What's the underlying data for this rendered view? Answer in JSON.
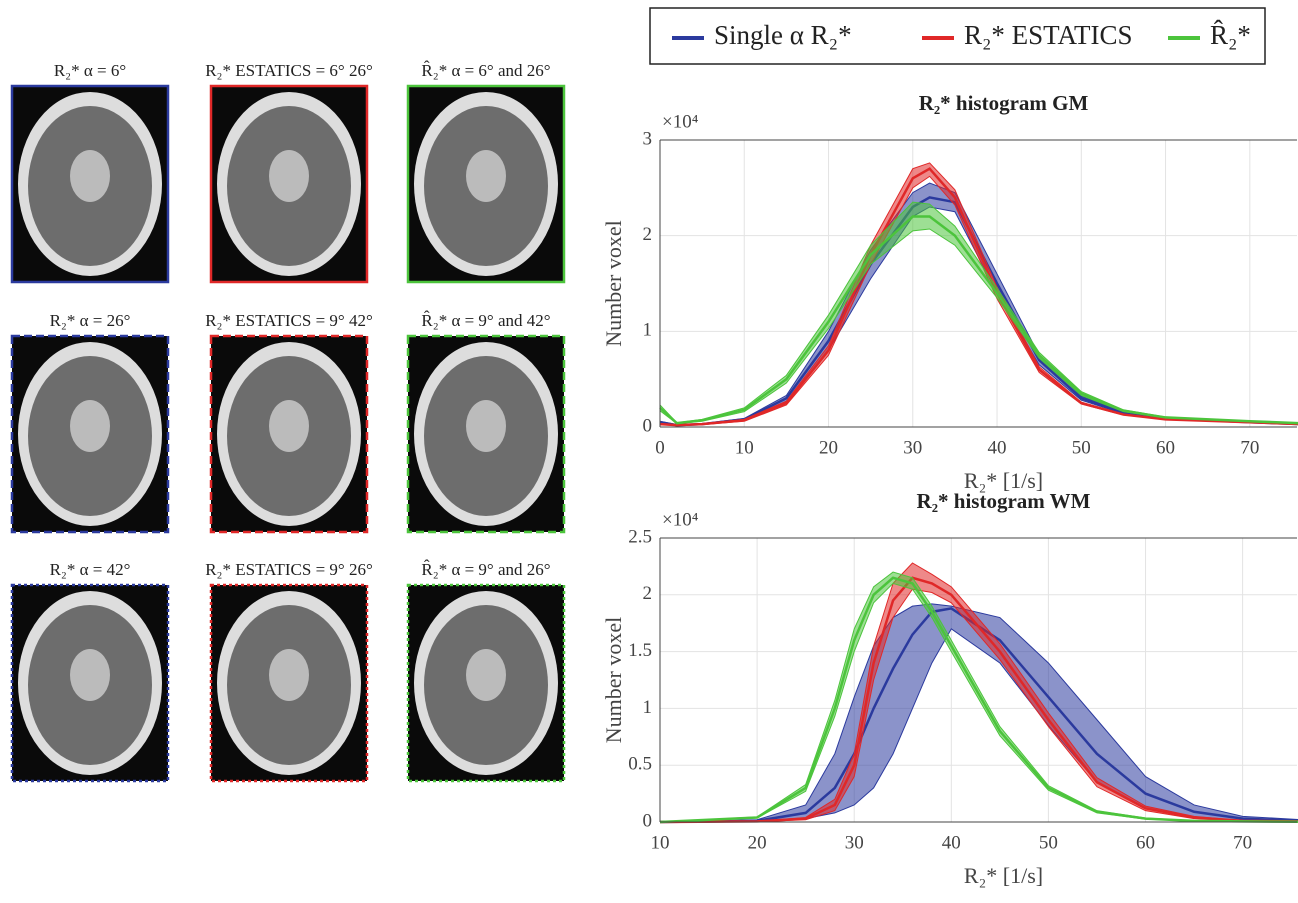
{
  "panels": {
    "labels": [
      [
        "R₂* α = 6°",
        "R₂* ESTATICS = 6° 26°",
        "R̂₂* α = 6° and 26°"
      ],
      [
        "R₂* α = 26°",
        "R₂* ESTATICS = 9° 42°",
        "R̂₂* α = 9° and 42°"
      ],
      [
        "R₂* α = 42°",
        "R₂* ESTATICS = 9° 26°",
        "R̂₂* α = 9° and 26°"
      ]
    ]
  },
  "chart_data": [
    {
      "type": "line",
      "title": "R₂* histogram GM",
      "x_label": "R₂* [1/s]",
      "y_label": "Number voxel",
      "y_exponent_label": "×10⁴",
      "grid": true,
      "x": [
        0,
        2,
        5,
        10,
        15,
        20,
        25,
        30,
        32,
        35,
        40,
        45,
        50,
        55,
        60,
        70,
        76
      ],
      "xlim": [
        0,
        75.6
      ],
      "xticks": [
        0,
        10,
        20,
        30,
        40,
        50,
        60,
        70
      ],
      "ylim": [
        0,
        30000
      ],
      "yticks": [
        {
          "value": 0,
          "label": "0"
        },
        {
          "value": 10000,
          "label": "1"
        },
        {
          "value": 20000,
          "label": "2"
        },
        {
          "value": 30000,
          "label": "3"
        }
      ],
      "series": [
        {
          "name": "Single α R₂*",
          "color": "#2b3a9e",
          "values": [
            500,
            200,
            300,
            800,
            3000,
            9000,
            17000,
            23000,
            24000,
            23500,
            15000,
            7000,
            3000,
            1500,
            900,
            500,
            300
          ],
          "lower": [
            400,
            150,
            250,
            700,
            2700,
            8000,
            15500,
            22000,
            23000,
            22500,
            14000,
            6500,
            2800,
            1400,
            850,
            450,
            250
          ],
          "upper": [
            600,
            250,
            350,
            900,
            3300,
            10000,
            18500,
            24500,
            25500,
            24500,
            16000,
            7500,
            3200,
            1600,
            950,
            550,
            350
          ]
        },
        {
          "name": "R₂* ESTATICS",
          "color": "#e02828",
          "values": [
            300,
            200,
            300,
            700,
            2500,
            8000,
            18000,
            26000,
            27000,
            24000,
            14000,
            6000,
            2500,
            1300,
            800,
            500,
            300
          ],
          "lower": [
            250,
            150,
            250,
            600,
            2300,
            7500,
            17000,
            25000,
            26200,
            23200,
            13400,
            5700,
            2400,
            1250,
            780,
            480,
            280
          ],
          "upper": [
            350,
            250,
            350,
            800,
            2700,
            8500,
            19000,
            27000,
            27600,
            24800,
            14600,
            6300,
            2600,
            1350,
            820,
            520,
            320
          ]
        },
        {
          "name": "R̂₂*",
          "color": "#4cc43c",
          "values": [
            2000,
            400,
            700,
            1800,
            5000,
            11000,
            18000,
            22000,
            22000,
            20000,
            14000,
            7500,
            3500,
            1700,
            1000,
            600,
            400
          ],
          "lower": [
            1700,
            350,
            600,
            1600,
            4600,
            10300,
            17000,
            20500,
            20700,
            19000,
            13500,
            7200,
            3300,
            1600,
            950,
            570,
            380
          ],
          "upper": [
            2300,
            450,
            800,
            2000,
            5400,
            11700,
            19000,
            23500,
            23300,
            21000,
            14500,
            7800,
            3700,
            1800,
            1050,
            630,
            420
          ]
        }
      ]
    },
    {
      "type": "line",
      "title": "R₂* histogram WM",
      "x_label": "R₂* [1/s]",
      "y_label": "Number voxel",
      "y_exponent_label": "×10⁴",
      "grid": true,
      "x": [
        10,
        20,
        25,
        28,
        30,
        32,
        34,
        36,
        38,
        40,
        45,
        50,
        55,
        60,
        65,
        70,
        76
      ],
      "xlim": [
        10,
        75.6
      ],
      "xticks": [
        10,
        20,
        30,
        40,
        50,
        60,
        70
      ],
      "ylim": [
        0,
        25000
      ],
      "yticks": [
        {
          "value": 0,
          "label": "0"
        },
        {
          "value": 5000,
          "label": "0.5"
        },
        {
          "value": 10000,
          "label": "1"
        },
        {
          "value": 15000,
          "label": "1.5"
        },
        {
          "value": 20000,
          "label": "2"
        },
        {
          "value": 25000,
          "label": "2.5"
        }
      ],
      "series": [
        {
          "name": "Single α R₂*",
          "color": "#2b3a9e",
          "values": [
            0,
            100,
            800,
            3000,
            6000,
            10000,
            13500,
            16500,
            18500,
            18800,
            16000,
            11000,
            6000,
            2500,
            900,
            300,
            100
          ],
          "lower": [
            0,
            50,
            300,
            800,
            1500,
            3000,
            6000,
            10000,
            14000,
            17000,
            14000,
            8500,
            3500,
            1200,
            400,
            100,
            50
          ],
          "upper": [
            0,
            200,
            1500,
            6000,
            11000,
            15500,
            18000,
            19000,
            19200,
            19000,
            18000,
            14000,
            9000,
            4000,
            1500,
            500,
            200
          ]
        },
        {
          "name": "R₂* ESTATICS",
          "color": "#e02828",
          "values": [
            0,
            50,
            300,
            1500,
            5000,
            14000,
            19500,
            21500,
            21000,
            20000,
            15000,
            9000,
            3500,
            1200,
            400,
            100,
            50
          ],
          "lower": [
            0,
            30,
            200,
            1000,
            4000,
            12500,
            18000,
            20500,
            20200,
            19300,
            14300,
            8400,
            3100,
            1000,
            300,
            80,
            40
          ],
          "upper": [
            0,
            70,
            400,
            2000,
            6000,
            15500,
            21000,
            22800,
            21800,
            20700,
            15700,
            9600,
            3900,
            1400,
            500,
            120,
            60
          ]
        },
        {
          "name": "R̂₂*",
          "color": "#4cc43c",
          "values": [
            0,
            400,
            3000,
            10000,
            16000,
            20000,
            21500,
            21000,
            18500,
            15500,
            8000,
            3000,
            900,
            300,
            100,
            50,
            20
          ],
          "lower": [
            0,
            350,
            2700,
            9300,
            15000,
            19300,
            21000,
            20500,
            18000,
            15000,
            7600,
            2800,
            800,
            250,
            80,
            40,
            15
          ],
          "upper": [
            0,
            450,
            3300,
            10700,
            17000,
            20700,
            22000,
            21500,
            19000,
            16000,
            8400,
            3200,
            1000,
            350,
            120,
            60,
            25
          ]
        }
      ]
    }
  ]
}
